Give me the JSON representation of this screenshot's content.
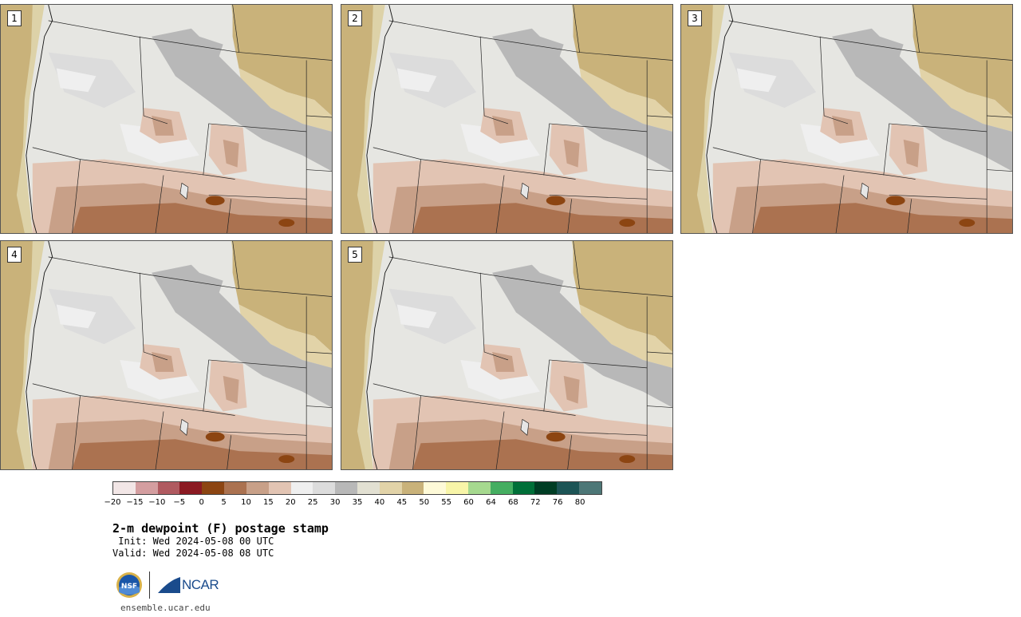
{
  "panels": [
    {
      "label": "1"
    },
    {
      "label": "2"
    },
    {
      "label": "3"
    },
    {
      "label": "4"
    },
    {
      "label": "5"
    }
  ],
  "colorbar": {
    "colors": [
      "#f2e6e6",
      "#d49ea0",
      "#b05a60",
      "#8b1a22",
      "#8c4512",
      "#ab7250",
      "#c8a088",
      "#e2c4b3",
      "#efefef",
      "#dcdcdc",
      "#b8b8b8",
      "#e2e0d2",
      "#e2d3a8",
      "#c9b27a",
      "#fefad8",
      "#f8f5a8",
      "#a6d98f",
      "#45ae61",
      "#006f38",
      "#003d24",
      "#1c5455",
      "#4d7777"
    ],
    "tick_labels": [
      "−20",
      "−15",
      "−10",
      "−5",
      "0",
      "5",
      "10",
      "15",
      "20",
      "25",
      "30",
      "35",
      "40",
      "45",
      "50",
      "55",
      "60",
      "64",
      "68",
      "72",
      "76",
      "80"
    ]
  },
  "title": "2-m dewpoint (F) postage stamp",
  "init": " Init: Wed 2024-05-08 00 UTC",
  "valid": "Valid: Wed 2024-05-08 08 UTC",
  "logos": {
    "nsf_icon": "nsf-seal",
    "ncar_text": "NCAR"
  },
  "site": "ensemble.ucar.edu"
}
